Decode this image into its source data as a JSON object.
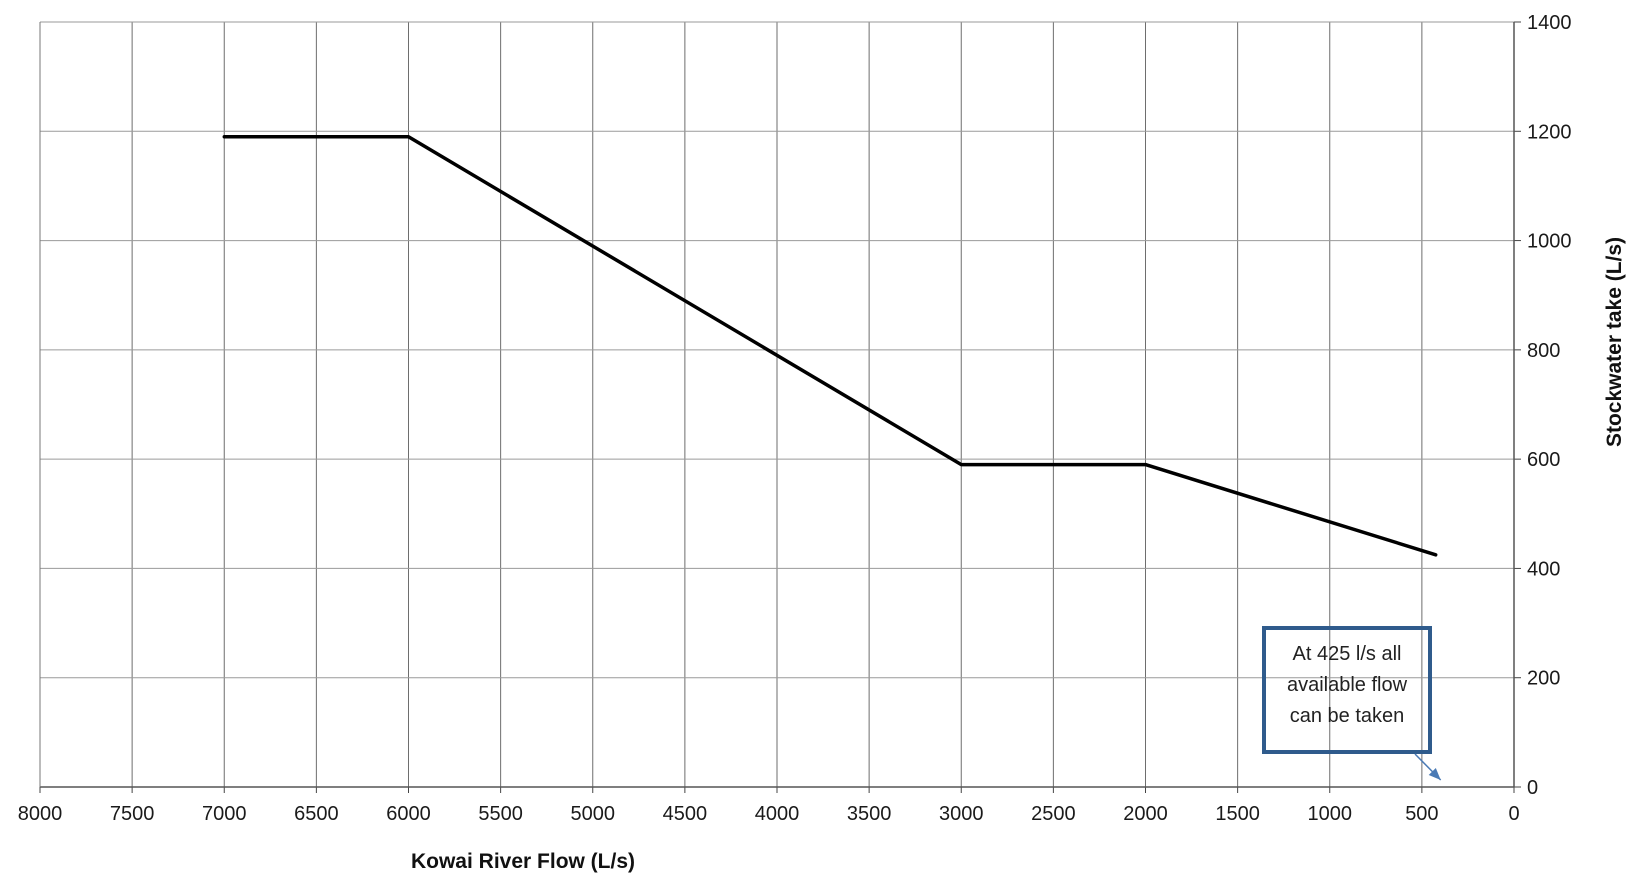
{
  "chart_data": {
    "type": "line",
    "xlabel": "Kowai River Flow (L/s)",
    "ylabel": "Stockwater take (L/s)",
    "x_reversed": true,
    "xlim": [
      0,
      8000
    ],
    "ylim": [
      0,
      1400
    ],
    "x_ticks": [
      8000,
      7500,
      7000,
      6500,
      6000,
      5500,
      5000,
      4500,
      4000,
      3500,
      3000,
      2500,
      2000,
      1500,
      1000,
      500,
      0
    ],
    "y_ticks": [
      0,
      200,
      400,
      600,
      800,
      1000,
      1200,
      1400
    ],
    "y_axis_side": "right",
    "grid": true,
    "series": [
      {
        "x": [
          7000,
          6000,
          3000,
          2000,
          425
        ],
        "y": [
          1190,
          1190,
          590,
          590,
          425
        ],
        "color": "#000000"
      }
    ],
    "annotations": [
      {
        "text_lines": [
          "At 425 l/s all",
          "available flow",
          "can be taken"
        ],
        "border_color": "#2f5b8c",
        "arrow_color": "#4a7ab5",
        "points_to": {
          "x": 425,
          "y": 0
        }
      }
    ]
  }
}
